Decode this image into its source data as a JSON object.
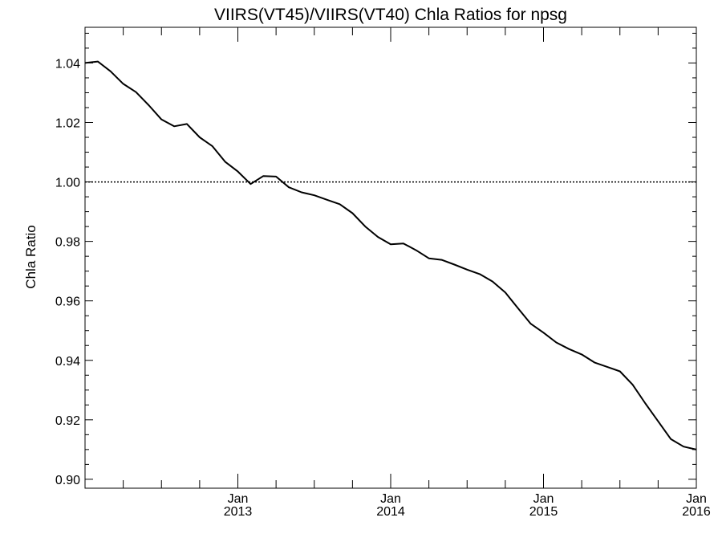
{
  "chart_data": {
    "type": "line",
    "title": "VIIRS(VT45)/VIIRS(VT40)  Chla Ratios for npsg",
    "xlabel": "",
    "ylabel": "Chla Ratio",
    "xlim": [
      "2012-01",
      "2016-01"
    ],
    "ylim": [
      0.897,
      1.052
    ],
    "y_ticks": [
      "0.90",
      "0.92",
      "0.94",
      "0.96",
      "0.98",
      "1.00",
      "1.02",
      "1.04"
    ],
    "x_ticks": [
      {
        "month": "Jan",
        "year": "2013",
        "date": "2013-01"
      },
      {
        "month": "Jan",
        "year": "2014",
        "date": "2014-01"
      },
      {
        "month": "Jan",
        "year": "2015",
        "date": "2015-01"
      },
      {
        "month": "Jan",
        "year": "2016",
        "date": "2016-01"
      }
    ],
    "reference_line": {
      "y": 1.0,
      "style": "dotted"
    },
    "grid": false,
    "line_color": "#000000",
    "series": [
      {
        "x": [
          "2012-01",
          "2012-02",
          "2012-03",
          "2012-04",
          "2012-05",
          "2012-06",
          "2012-07",
          "2012-08",
          "2012-09",
          "2012-10",
          "2012-11",
          "2012-12",
          "2013-01",
          "2013-02",
          "2013-03",
          "2013-04",
          "2013-05",
          "2013-06",
          "2013-07",
          "2013-08",
          "2013-09",
          "2013-10",
          "2013-11",
          "2013-12",
          "2014-01",
          "2014-02",
          "2014-03",
          "2014-04",
          "2014-05",
          "2014-06",
          "2014-07",
          "2014-08",
          "2014-09",
          "2014-10",
          "2014-11",
          "2014-12",
          "2015-01",
          "2015-02",
          "2015-03",
          "2015-04",
          "2015-05",
          "2015-06",
          "2015-07",
          "2015-08",
          "2015-09",
          "2015-10",
          "2015-11",
          "2015-12",
          "2016-01"
        ],
        "values": [
          1.04,
          1.0405,
          1.0372,
          1.033,
          1.0302,
          1.0258,
          1.021,
          1.0187,
          1.0195,
          1.015,
          1.012,
          1.0068,
          1.0035,
          0.9993,
          1.002,
          1.0018,
          0.9982,
          0.9965,
          0.9955,
          0.994,
          0.9925,
          0.9895,
          0.985,
          0.9815,
          0.979,
          0.9793,
          0.977,
          0.9743,
          0.9738,
          0.9722,
          0.9705,
          0.969,
          0.9665,
          0.9628,
          0.9575,
          0.9523,
          0.9493,
          0.946,
          0.9438,
          0.942,
          0.9393,
          0.9378,
          0.9363,
          0.9318,
          0.9255,
          0.9195,
          0.9135,
          0.911,
          0.91
        ]
      }
    ]
  }
}
